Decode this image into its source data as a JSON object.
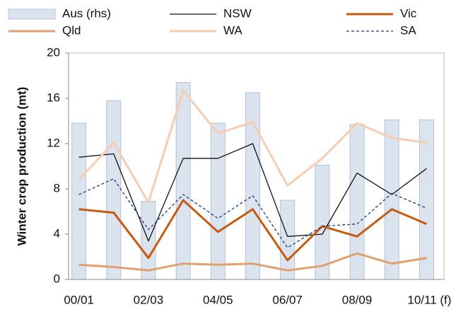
{
  "chart_data": {
    "type": "bar-line",
    "y_label": "Winter crop production (mt)",
    "categories": [
      "00/01",
      null,
      "02/03",
      null,
      "04/05",
      null,
      "06/07",
      null,
      "08/09",
      null,
      "10/11 (f)"
    ],
    "ylim": [
      0,
      20
    ],
    "yticks": [
      0,
      4,
      8,
      12,
      16,
      20
    ],
    "series": [
      {
        "name": "Aus (rhs)",
        "type": "bar",
        "color": "#dbe3ee",
        "stroke": "#b4c2d6",
        "values": [
          13.8,
          15.8,
          6.9,
          17.4,
          13.8,
          16.5,
          7.0,
          10.1,
          13.7,
          14.1,
          14.1
        ]
      },
      {
        "name": "NSW",
        "type": "line",
        "color": "#111111",
        "width": 1.3,
        "dash": false,
        "values": [
          10.8,
          11.1,
          3.4,
          10.7,
          10.7,
          12.0,
          3.8,
          4.0,
          9.4,
          7.5,
          9.8
        ]
      },
      {
        "name": "Vic",
        "type": "line",
        "color": "#c55a11",
        "width": 3,
        "dash": false,
        "values": [
          6.2,
          5.9,
          1.9,
          7.0,
          4.2,
          6.2,
          1.7,
          4.7,
          3.8,
          6.2,
          4.9
        ]
      },
      {
        "name": "Qld",
        "type": "line",
        "color": "#e0a070",
        "width": 3,
        "dash": false,
        "values": [
          1.3,
          1.1,
          0.8,
          1.4,
          1.3,
          1.4,
          0.8,
          1.2,
          2.3,
          1.4,
          1.9
        ]
      },
      {
        "name": "WA",
        "type": "line",
        "color": "#f5cdb2",
        "width": 3,
        "dash": false,
        "values": [
          8.8,
          12.1,
          6.8,
          16.7,
          12.9,
          13.9,
          8.3,
          10.7,
          13.8,
          12.5,
          12.1
        ]
      },
      {
        "name": "SA",
        "type": "line",
        "color": "#1f3a7a",
        "width": 1.3,
        "dash": true,
        "values": [
          7.5,
          8.9,
          4.4,
          7.5,
          5.4,
          7.4,
          2.8,
          4.7,
          4.9,
          7.6,
          6.3
        ]
      }
    ]
  }
}
